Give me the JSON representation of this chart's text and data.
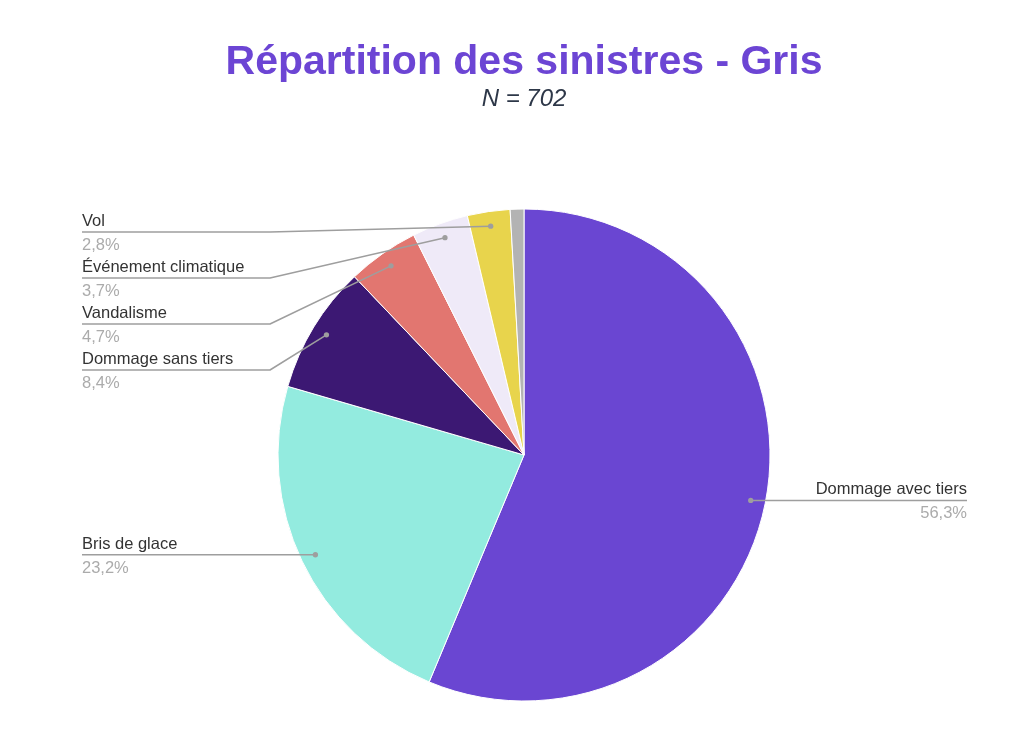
{
  "chart_data": {
    "type": "pie",
    "title": "Répartition des sinistres - Gris",
    "subtitle": "N = 702",
    "categories": [
      "Dommage avec tiers",
      "Bris de glace",
      "Dommage sans tiers",
      "Vandalisme",
      "Événement climatique",
      "Vol",
      null
    ],
    "values": [
      56.3,
      23.2,
      8.4,
      4.7,
      3.7,
      2.8,
      0.9
    ],
    "colors": [
      "#6a46d2",
      "#93ebdf",
      "#3c1873",
      "#e27670",
      "#efeaf8",
      "#e8d44c",
      "#b3b3b3"
    ],
    "value_labels": [
      "56,3%",
      "23,2%",
      "8,4%",
      "4,7%",
      "3,7%",
      "2,8%",
      null
    ]
  }
}
